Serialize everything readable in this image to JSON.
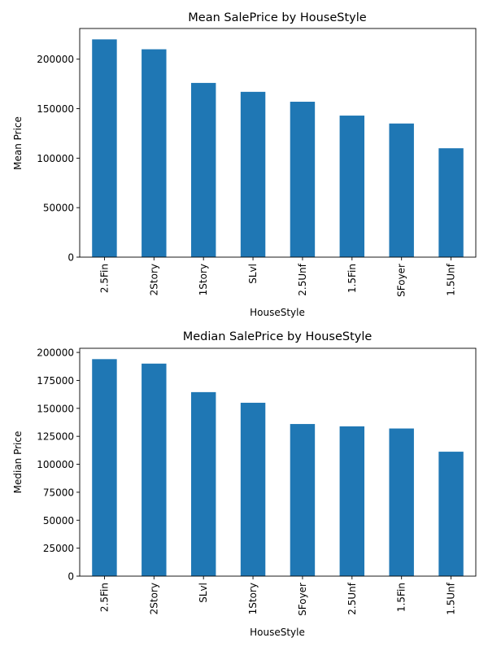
{
  "chart_data": [
    {
      "type": "bar",
      "title": "Mean SalePrice by HouseStyle",
      "xlabel": "HouseStyle",
      "ylabel": "Mean Price",
      "categories": [
        "2.5Fin",
        "2Story",
        "1Story",
        "SLvl",
        "2.5Unf",
        "1.5Fin",
        "SFoyer",
        "1.5Unf"
      ],
      "values": [
        220000,
        210000,
        176000,
        167000,
        157000,
        143000,
        135000,
        110000
      ],
      "ylim": [
        0,
        231000
      ],
      "yticks": [
        0,
        50000,
        100000,
        150000,
        200000
      ],
      "grid": false,
      "bar_color": "#1f77b4"
    },
    {
      "type": "bar",
      "title": "Median SalePrice by HouseStyle",
      "xlabel": "HouseStyle",
      "ylabel": "Median Price",
      "categories": [
        "2.5Fin",
        "2Story",
        "SLvl",
        "1Story",
        "SFoyer",
        "2.5Unf",
        "1.5Fin",
        "1.5Unf"
      ],
      "values": [
        194000,
        190000,
        164500,
        155000,
        136000,
        133900,
        132000,
        111250
      ],
      "ylim": [
        0,
        203700
      ],
      "yticks": [
        0,
        25000,
        50000,
        75000,
        100000,
        125000,
        150000,
        175000,
        200000
      ],
      "grid": false,
      "bar_color": "#1f77b4"
    }
  ]
}
